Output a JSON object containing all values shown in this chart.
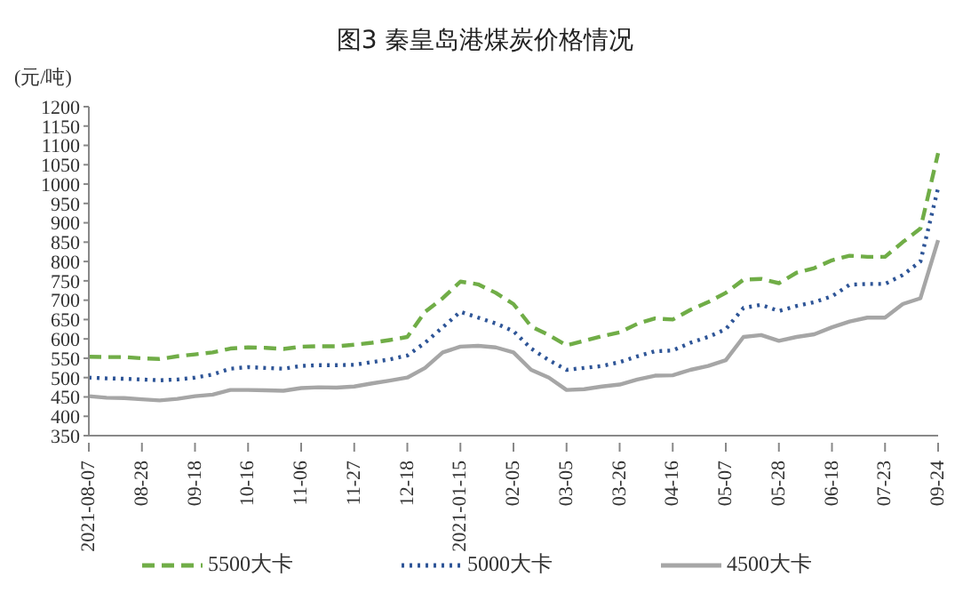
{
  "chart_data": {
    "type": "line",
    "title": "图3 秦皇岛港煤炭价格情况",
    "ylabel": "(元/吨)",
    "categories": [
      "2021-08-07",
      null,
      null,
      "08-28",
      null,
      null,
      "09-18",
      null,
      null,
      "10-16",
      null,
      null,
      "11-06",
      null,
      null,
      "11-27",
      null,
      null,
      "12-18",
      null,
      null,
      "2021-01-15",
      null,
      null,
      "02-05",
      null,
      null,
      "03-05",
      null,
      null,
      "03-26",
      null,
      null,
      "04-16",
      null,
      null,
      "05-07",
      null,
      null,
      "05-28",
      null,
      null,
      "06-18",
      null,
      null,
      "07-23",
      null,
      null,
      "09-24"
    ],
    "series": [
      {
        "name": "5500大卡",
        "color": "#70ad47",
        "line_style": "dashed",
        "values": [
          554,
          553,
          553,
          550,
          548,
          555,
          560,
          565,
          575,
          578,
          577,
          574,
          580,
          581,
          581,
          585,
          590,
          597,
          605,
          670,
          705,
          748,
          741,
          719,
          690,
          632,
          610,
          583,
          595,
          607,
          617,
          639,
          653,
          650,
          675,
          695,
          719,
          753,
          755,
          744,
          771,
          783,
          803,
          815,
          812,
          812,
          850,
          885,
          1080
        ]
      },
      {
        "name": "5000大卡",
        "color": "#2e5597",
        "line_style": "dotted",
        "values": [
          500,
          498,
          497,
          495,
          493,
          495,
          500,
          508,
          523,
          527,
          525,
          523,
          530,
          532,
          532,
          533,
          540,
          547,
          557,
          590,
          630,
          670,
          655,
          640,
          620,
          575,
          545,
          520,
          525,
          530,
          540,
          555,
          568,
          570,
          590,
          605,
          625,
          680,
          688,
          672,
          685,
          695,
          710,
          740,
          742,
          742,
          765,
          800,
          990
        ]
      },
      {
        "name": "4500大卡",
        "color": "#a6a6a6",
        "line_style": "solid",
        "values": [
          452,
          448,
          447,
          444,
          441,
          445,
          452,
          456,
          468,
          468,
          467,
          466,
          473,
          475,
          474,
          477,
          485,
          492,
          500,
          525,
          565,
          580,
          582,
          578,
          565,
          520,
          500,
          468,
          470,
          477,
          482,
          495,
          505,
          506,
          520,
          530,
          545,
          605,
          610,
          595,
          605,
          612,
          630,
          645,
          655,
          655,
          690,
          705,
          855
        ]
      }
    ],
    "ylim": [
      350,
      1200
    ],
    "yticks": [
      350,
      400,
      450,
      500,
      550,
      600,
      650,
      700,
      750,
      800,
      850,
      900,
      950,
      1000,
      1050,
      1100,
      1150,
      1200
    ],
    "grid": false,
    "legend": "bottom"
  }
}
